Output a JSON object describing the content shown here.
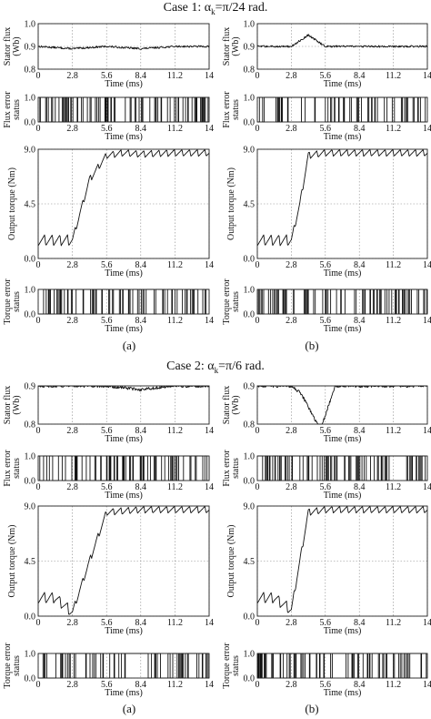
{
  "figure": {
    "cases": [
      {
        "title_prefix": "Case 1: α",
        "title_sub": "k",
        "title_suffix": "=π/24 rad."
      },
      {
        "title_prefix": "Case 2: α",
        "title_sub": "k",
        "title_suffix": "=π/6 rad."
      }
    ],
    "captions": [
      "(a)",
      "(b)"
    ],
    "xlabel": "Time (ms)"
  },
  "chart_data": [
    {
      "case": 1,
      "column": "(a)",
      "type": "line",
      "ylabel": "Stator flux (Wb)",
      "xlabel": "Time (ms)",
      "xlim": [
        0,
        14
      ],
      "xticks": [
        "0",
        "2.8",
        "5.6",
        "8.4",
        "11.2",
        "14"
      ],
      "ylim": [
        0.8,
        1.0
      ],
      "yticks": [
        "0.8",
        "0.9",
        "1.0"
      ],
      "grid": true,
      "x": [
        0,
        2.8,
        5.6,
        8.4,
        11.2,
        14
      ],
      "values": [
        0.9,
        0.89,
        0.9,
        0.89,
        0.9,
        0.9
      ]
    },
    {
      "case": 1,
      "column": "(a)",
      "type": "line",
      "ylabel": "Flux error status",
      "xlabel": "Time (ms)",
      "xlim": [
        0,
        14
      ],
      "xticks": [
        "0",
        "2.8",
        "5.6",
        "8.4",
        "11.2",
        "14"
      ],
      "ylim": [
        0.0,
        1.0
      ],
      "yticks": [
        "0.0",
        "1.0"
      ],
      "grid": true,
      "x": [
        0,
        2.8,
        5.6,
        8.4,
        11.2,
        14
      ],
      "values": [
        1,
        1,
        0,
        1,
        0,
        1
      ]
    },
    {
      "case": 1,
      "column": "(a)",
      "type": "line",
      "ylabel": "Output torque (Nm)",
      "xlabel": "Time (ms)",
      "xlim": [
        0,
        14
      ],
      "xticks": [
        "0",
        "2.8",
        "5.6",
        "8.4",
        "11.2",
        "14"
      ],
      "ylim": [
        0.0,
        9.0
      ],
      "yticks": [
        "0.0",
        "4.5",
        "9.0"
      ],
      "grid": true,
      "x": [
        0,
        1.4,
        2.8,
        3.5,
        4.2,
        5.6,
        7.0,
        8.4,
        11.2,
        14
      ],
      "values": [
        1.5,
        1.5,
        1.5,
        4.0,
        6.5,
        8.5,
        8.7,
        8.6,
        8.7,
        8.7
      ]
    },
    {
      "case": 1,
      "column": "(a)",
      "type": "line",
      "ylabel": "Torque error status",
      "xlabel": "Time (ms)",
      "xlim": [
        0,
        14
      ],
      "xticks": [
        "0",
        "2.8",
        "5.6",
        "8.4",
        "11.2",
        "14"
      ],
      "ylim": [
        0.0,
        1.0
      ],
      "yticks": [
        "0.0",
        "1.0"
      ],
      "grid": true,
      "x": [
        0,
        2.8,
        3.0,
        5.6,
        8.4,
        11.2,
        14
      ],
      "values": [
        0,
        1,
        1,
        1,
        1,
        1,
        1
      ]
    },
    {
      "case": 1,
      "column": "(b)",
      "type": "line",
      "ylabel": "Stator flux (Wb)",
      "xlabel": "Time (ms)",
      "xlim": [
        0,
        14
      ],
      "xticks": [
        "0",
        "2.8",
        "5.6",
        "8.4",
        "11.2",
        "14"
      ],
      "ylim": [
        0.8,
        1.0
      ],
      "yticks": [
        "0.8",
        "0.9",
        "1.0"
      ],
      "grid": true,
      "x": [
        0,
        2.8,
        4.2,
        5.6,
        8.4,
        11.2,
        14
      ],
      "values": [
        0.9,
        0.9,
        0.95,
        0.9,
        0.9,
        0.9,
        0.9
      ]
    },
    {
      "case": 1,
      "column": "(b)",
      "type": "line",
      "ylabel": "Flux error status",
      "xlabel": "Time (ms)",
      "xlim": [
        0,
        14
      ],
      "xticks": [
        "0",
        "2.8",
        "5.6",
        "8.4",
        "11.2",
        "14"
      ],
      "ylim": [
        0.0,
        1.0
      ],
      "yticks": [
        "0.0",
        "1.0"
      ],
      "grid": true,
      "x": [
        0,
        2.8,
        5.6,
        8.4,
        11.2,
        14
      ],
      "values": [
        1,
        1,
        1,
        0,
        1,
        1
      ]
    },
    {
      "case": 1,
      "column": "(b)",
      "type": "line",
      "ylabel": "Output torque (Nm)",
      "xlabel": "Time (ms)",
      "xlim": [
        0,
        14
      ],
      "xticks": [
        "0",
        "2.8",
        "5.6",
        "8.4",
        "11.2",
        "14"
      ],
      "ylim": [
        0.0,
        9.0
      ],
      "yticks": [
        "0.0",
        "4.5",
        "9.0"
      ],
      "grid": true,
      "x": [
        0,
        1.4,
        2.8,
        3.5,
        4.2,
        5.6,
        8.4,
        11.2,
        14
      ],
      "values": [
        1.5,
        1.5,
        1.5,
        4.5,
        8.5,
        8.7,
        8.7,
        8.7,
        8.7
      ]
    },
    {
      "case": 1,
      "column": "(b)",
      "type": "line",
      "ylabel": "Torque error status",
      "xlabel": "Time (ms)",
      "xlim": [
        0,
        14
      ],
      "xticks": [
        "0",
        "2.8",
        "5.6",
        "8.4",
        "11.2",
        "14"
      ],
      "ylim": [
        0.0,
        1.0
      ],
      "yticks": [
        "0.0",
        "1.0"
      ],
      "grid": true,
      "x": [
        0,
        2.8,
        3.0,
        5.6,
        8.4,
        11.2,
        14
      ],
      "values": [
        0,
        1,
        1,
        1,
        1,
        1,
        1
      ]
    },
    {
      "case": 2,
      "column": "(a)",
      "type": "line",
      "ylabel": "Stator flux (Wb)",
      "xlabel": "Time (ms)",
      "xlim": [
        0,
        14
      ],
      "xticks": [
        "0",
        "2.8",
        "5.6",
        "8.4",
        "11.2",
        "14"
      ],
      "ylim": [
        0.8,
        0.9
      ],
      "yticks": [
        "0.8",
        "0.9"
      ],
      "grid": true,
      "x": [
        0,
        2.8,
        5.6,
        8.4,
        11.2,
        14
      ],
      "values": [
        0.9,
        0.9,
        0.9,
        0.89,
        0.9,
        0.9
      ]
    },
    {
      "case": 2,
      "column": "(a)",
      "type": "line",
      "ylabel": "Flux error status",
      "xlabel": "Time (ms)",
      "xlim": [
        0,
        14
      ],
      "xticks": [
        "0",
        "2.8",
        "5.6",
        "8.4",
        "11.2",
        "14"
      ],
      "ylim": [
        0.0,
        1.0
      ],
      "yticks": [
        "0.0",
        "1.0"
      ],
      "grid": true,
      "x": [
        0,
        2.8,
        5.6,
        8.4,
        11.2,
        14
      ],
      "values": [
        1,
        1,
        0,
        1,
        1,
        1
      ]
    },
    {
      "case": 2,
      "column": "(a)",
      "type": "line",
      "ylabel": "Output torque (Nm)",
      "xlabel": "Time (ms)",
      "xlim": [
        0,
        14
      ],
      "xticks": [
        "0",
        "2.8",
        "5.6",
        "8.4",
        "11.2",
        "14"
      ],
      "ylim": [
        0.0,
        9.0
      ],
      "yticks": [
        "0.0",
        "4.5",
        "9.0"
      ],
      "grid": true,
      "x": [
        0,
        1.4,
        2.8,
        4.2,
        5.6,
        8.4,
        11.2,
        14
      ],
      "values": [
        1.5,
        1.5,
        0.3,
        4.5,
        8.5,
        8.7,
        8.7,
        8.7
      ]
    },
    {
      "case": 2,
      "column": "(a)",
      "type": "line",
      "ylabel": "Torque error status",
      "xlabel": "Time (ms)",
      "xlim": [
        0,
        14
      ],
      "xticks": [
        "0",
        "2.8",
        "5.6",
        "8.4",
        "11.2",
        "14"
      ],
      "ylim": [
        0.0,
        1.0
      ],
      "yticks": [
        "0.0",
        "1.0"
      ],
      "grid": true,
      "x": [
        0,
        2.8,
        3.0,
        5.6,
        8.4,
        11.2,
        14
      ],
      "values": [
        0,
        1,
        1,
        1,
        1,
        1,
        1
      ]
    },
    {
      "case": 2,
      "column": "(b)",
      "type": "line",
      "ylabel": "Stator flux (Wb)",
      "xlabel": "Time (ms)",
      "xlim": [
        0,
        14
      ],
      "xticks": [
        "0",
        "2.8",
        "5.6",
        "8.4",
        "11.2",
        "14"
      ],
      "ylim": [
        0.8,
        0.9
      ],
      "yticks": [
        "0.8",
        "0.9"
      ],
      "grid": true,
      "x": [
        0,
        2.8,
        3.6,
        5.2,
        6.4,
        8.4,
        11.2,
        14
      ],
      "values": [
        0.9,
        0.9,
        0.88,
        0.785,
        0.9,
        0.9,
        0.9,
        0.9
      ]
    },
    {
      "case": 2,
      "column": "(b)",
      "type": "line",
      "ylabel": "Flux error status",
      "xlabel": "Time (ms)",
      "xlim": [
        0,
        14
      ],
      "xticks": [
        "0",
        "2.8",
        "5.6",
        "8.4",
        "11.2",
        "14"
      ],
      "ylim": [
        0.0,
        1.0
      ],
      "yticks": [
        "0.0",
        "1.0"
      ],
      "grid": true,
      "x": [
        0,
        2.8,
        3.6,
        5.2,
        5.6,
        8.4,
        11.2,
        14
      ],
      "values": [
        1,
        1,
        1,
        0,
        1,
        1,
        1,
        1
      ]
    },
    {
      "case": 2,
      "column": "(b)",
      "type": "line",
      "ylabel": "Output torque (Nm)",
      "xlabel": "Time (ms)",
      "xlim": [
        0,
        14
      ],
      "xticks": [
        "0",
        "2.8",
        "5.6",
        "8.4",
        "11.2",
        "14"
      ],
      "ylim": [
        0.0,
        9.0
      ],
      "yticks": [
        "0.0",
        "4.5",
        "9.0"
      ],
      "grid": true,
      "x": [
        0,
        1.4,
        2.8,
        3.5,
        4.2,
        5.6,
        8.4,
        11.2,
        14
      ],
      "values": [
        1.5,
        1.5,
        0.5,
        4.5,
        8.5,
        8.7,
        8.7,
        8.7,
        8.7
      ]
    },
    {
      "case": 2,
      "column": "(b)",
      "type": "line",
      "ylabel": "Torque error status",
      "xlabel": "Time (ms)",
      "xlim": [
        0,
        14
      ],
      "xticks": [
        "0",
        "2.8",
        "5.6",
        "8.4",
        "11.2",
        "14"
      ],
      "ylim": [
        0.0,
        1.0
      ],
      "yticks": [
        "0.0",
        "1.0"
      ],
      "grid": true,
      "x": [
        0,
        2.8,
        3.0,
        5.6,
        8.4,
        11.2,
        14
      ],
      "values": [
        0,
        1,
        1,
        1,
        1,
        1,
        1
      ]
    }
  ]
}
